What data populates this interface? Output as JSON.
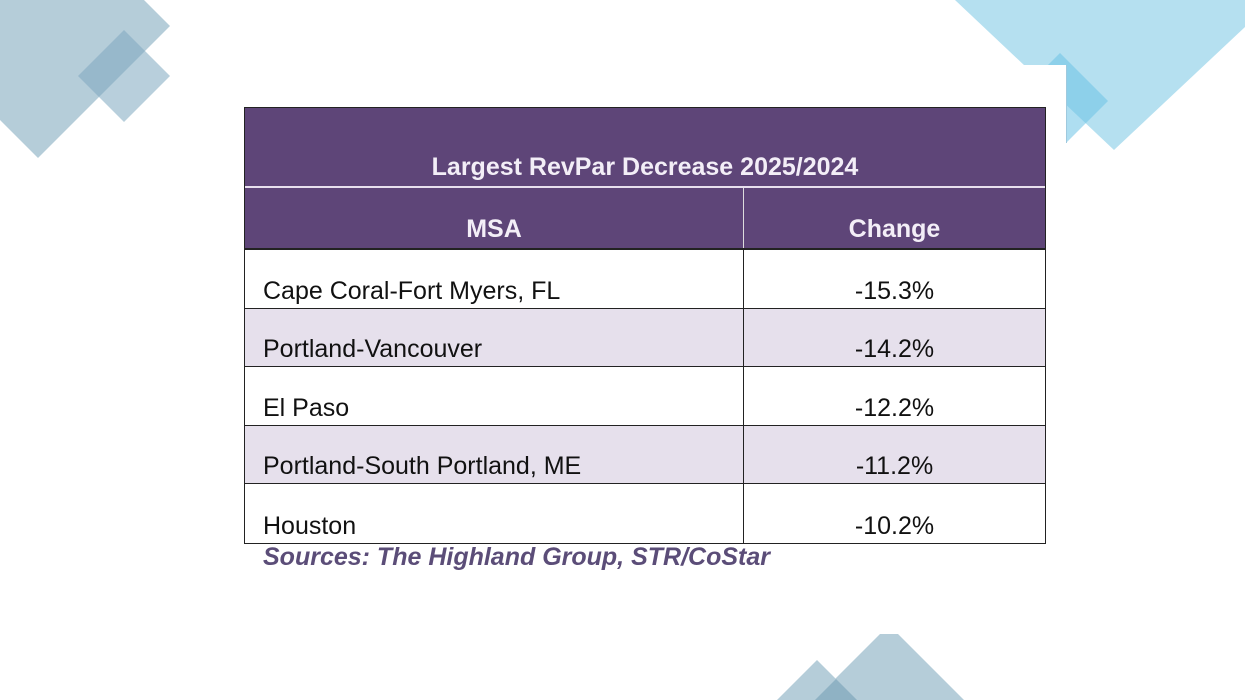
{
  "table": {
    "title": "Largest RevPar Decrease 2025/2024",
    "columns": [
      "MSA",
      "Change"
    ],
    "rows": [
      {
        "msa": "Cape Coral-Fort Myers, FL",
        "change": "-15.3%"
      },
      {
        "msa": "Portland-Vancouver",
        "change": "-14.2%"
      },
      {
        "msa": "El Paso",
        "change": "-12.2%"
      },
      {
        "msa": "Portland-South Portland, ME",
        "change": "-11.2%"
      },
      {
        "msa": "Houston",
        "change": "-10.2%"
      }
    ],
    "source": "Sources: The Highland Group, STR/CoStar"
  },
  "colors": {
    "header": "#5e4578",
    "alt_row": "#e6e0ec",
    "decor_gray_blue": "#b5cdd9",
    "decor_light_blue": "#b5e0f0",
    "source_text": "#5b4d78"
  }
}
